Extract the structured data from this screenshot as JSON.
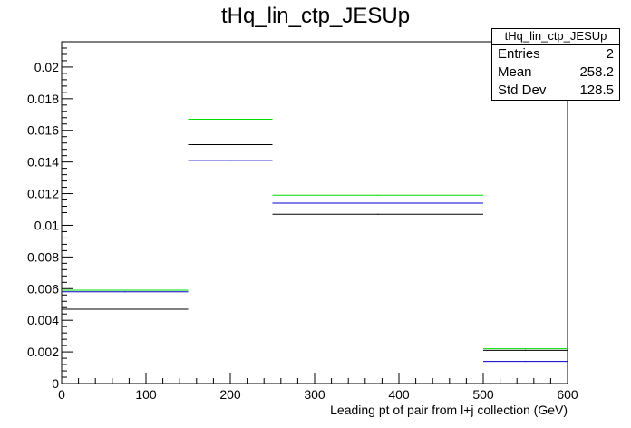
{
  "chart_data": {
    "type": "histogram",
    "title": "tHq_lin_ctp_JESUp",
    "xlabel": "Leading pt of pair from l+j collection (GeV)",
    "ylabel": "",
    "xlim": [
      0,
      600
    ],
    "ylim": [
      0,
      0.0216
    ],
    "x_ticks": [
      "0",
      "100",
      "200",
      "300",
      "400",
      "500",
      "600"
    ],
    "y_ticks": [
      "0",
      "0.002",
      "0.004",
      "0.006",
      "0.008",
      "0.01",
      "0.012",
      "0.014",
      "0.016",
      "0.018",
      "0.02"
    ],
    "bin_edges": [
      0,
      150,
      250,
      500,
      600
    ],
    "series": [
      {
        "color": "#000000",
        "values": [
          0.0047,
          0.0151,
          0.0107,
          0.0021
        ]
      },
      {
        "color": "#0000cc",
        "values": [
          0.0058,
          0.0141,
          0.0114,
          0.0014
        ]
      },
      {
        "color": "#00dd00",
        "values": [
          0.0059,
          0.0167,
          0.0119,
          0.0022
        ]
      }
    ],
    "stats": {
      "title": "tHq_lin_ctp_JESUp",
      "rows": [
        {
          "label": "Entries",
          "value": "2"
        },
        {
          "label": "Mean",
          "value": "258.2"
        },
        {
          "label": "Std Dev",
          "value": "128.5"
        }
      ]
    }
  }
}
